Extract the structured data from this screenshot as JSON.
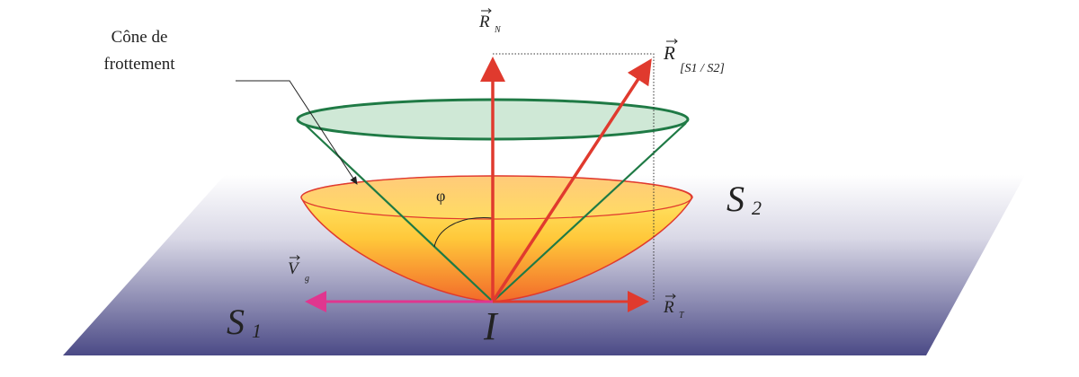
{
  "diagram": {
    "cone_label_line1": "Cône de",
    "cone_label_line2": "frottement",
    "normal_force": {
      "symbol": "R",
      "subscript": "N"
    },
    "resultant_force": {
      "symbol": "R",
      "subscript": "[S1 / S2]",
      "sub_s1": "S",
      "sub_1": "1",
      "sub_slash": "/",
      "sub_s2": "S",
      "sub_2": "2"
    },
    "tangential_force": {
      "symbol": "R",
      "subscript": "T"
    },
    "sliding_velocity": {
      "symbol": "V",
      "subscript": "g"
    },
    "angle_label": "φ",
    "solid_1": {
      "symbol": "S",
      "subscript": "1"
    },
    "solid_2": {
      "symbol": "S",
      "subscript": "2"
    },
    "contact_point": "I",
    "colors": {
      "force_arrows": "#e03a2e",
      "velocity_arrow": "#e0368f",
      "cone_lines": "#1f7a45",
      "cone_ellipse_fill": "#cfe8d6",
      "plane_dark": "#4b4a86"
    }
  }
}
